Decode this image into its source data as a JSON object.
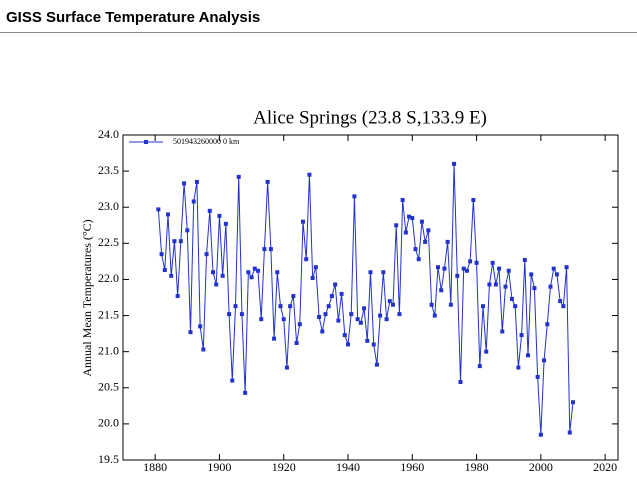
{
  "header": {
    "title": "GISS Surface Temperature Analysis"
  },
  "chart_data": {
    "type": "line",
    "title": "Alice Springs (23.8 S,133.9 E)",
    "y_label": "Annual Mean Temperatures (°C)",
    "x": [
      1881,
      1882,
      1883,
      1884,
      1885,
      1886,
      1887,
      1888,
      1889,
      1890,
      1891,
      1892,
      1893,
      1894,
      1895,
      1896,
      1897,
      1898,
      1899,
      1900,
      1901,
      1902,
      1903,
      1904,
      1905,
      1906,
      1907,
      1908,
      1909,
      1910,
      1911,
      1912,
      1913,
      1914,
      1915,
      1916,
      1917,
      1918,
      1919,
      1920,
      1921,
      1922,
      1923,
      1924,
      1925,
      1926,
      1927,
      1928,
      1929,
      1930,
      1931,
      1932,
      1933,
      1934,
      1935,
      1936,
      1937,
      1938,
      1939,
      1940,
      1941,
      1942,
      1943,
      1944,
      1945,
      1946,
      1947,
      1948,
      1949,
      1950,
      1951,
      1952,
      1953,
      1954,
      1955,
      1956,
      1957,
      1958,
      1959,
      1960,
      1961,
      1962,
      1963,
      1964,
      1965,
      1966,
      1967,
      1968,
      1969,
      1970,
      1971,
      1972,
      1973,
      1974,
      1975,
      1976,
      1977,
      1978,
      1979,
      1980,
      1981,
      1982,
      1983,
      1984,
      1985,
      1986,
      1987,
      1988,
      1989,
      1990,
      1991,
      1992,
      1993,
      1994,
      1995,
      1996,
      1997,
      1998,
      1999,
      2000,
      2001,
      2002,
      2003,
      2004,
      2005,
      2006,
      2007,
      2008,
      2009,
      2010
    ],
    "series": [
      {
        "name": "501943260000 0 km",
        "color": "#2233cc",
        "values": [
          22.97,
          22.35,
          22.13,
          22.9,
          22.05,
          22.53,
          21.77,
          22.53,
          23.33,
          22.68,
          21.27,
          23.08,
          23.35,
          21.35,
          21.03,
          22.35,
          22.95,
          22.1,
          21.93,
          22.88,
          22.05,
          22.77,
          21.52,
          20.6,
          21.63,
          23.42,
          21.52,
          20.43,
          22.1,
          22.03,
          22.15,
          22.12,
          21.45,
          22.42,
          23.35,
          22.42,
          21.18,
          22.1,
          21.63,
          21.45,
          20.78,
          21.63,
          21.77,
          21.12,
          21.38,
          22.8,
          22.28,
          23.45,
          22.02,
          22.17,
          21.48,
          21.28,
          21.52,
          21.63,
          21.77,
          21.93,
          21.43,
          21.8,
          21.23,
          21.1,
          21.52,
          23.15,
          21.45,
          21.4,
          21.6,
          21.15,
          22.1,
          21.1,
          20.82,
          21.5,
          22.1,
          21.45,
          21.7,
          21.65,
          22.75,
          21.52,
          23.1,
          22.65,
          22.87,
          22.85,
          22.42,
          22.28,
          22.8,
          22.52,
          22.68,
          21.65,
          21.5,
          22.17,
          21.85,
          22.15,
          22.52,
          21.65,
          23.6,
          22.05,
          20.58,
          22.15,
          22.12,
          22.25,
          23.1,
          22.23,
          20.8,
          21.63,
          21.0,
          21.93,
          22.23,
          21.93,
          22.15,
          21.28,
          21.9,
          22.12,
          21.73,
          21.63,
          20.78,
          21.23,
          22.27,
          20.95,
          22.07,
          21.88,
          20.65,
          19.85,
          20.88,
          21.38,
          21.9,
          22.15,
          22.07,
          21.7,
          21.63,
          22.17,
          19.88,
          20.3
        ]
      }
    ],
    "xlim": [
      1870,
      2024
    ],
    "ylim": [
      19.5,
      24
    ],
    "xticks": [
      1880,
      1900,
      1920,
      1940,
      1960,
      1980,
      2000,
      2020
    ],
    "yticks": [
      19.5,
      {
        "value": 20,
        "label": "20.0"
      },
      20.5,
      {
        "value": 21,
        "label": "21.0"
      },
      21.5,
      {
        "value": 22,
        "label": "22.0"
      },
      22.5,
      {
        "value": 23,
        "label": "23.0"
      },
      23.5,
      {
        "value": 24,
        "label": "24.0"
      }
    ],
    "legend": "upper left",
    "marker": "square"
  }
}
